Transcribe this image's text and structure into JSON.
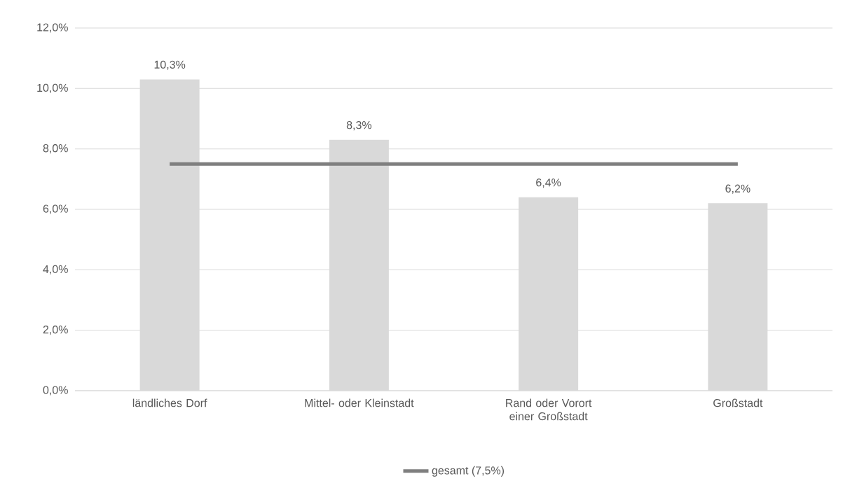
{
  "chart_data": {
    "type": "bar",
    "categories": [
      "ländliches Dorf",
      "Mittel- oder Kleinstadt",
      "Rand oder Vorort einer Großstadt",
      "Großstadt"
    ],
    "series": [
      {
        "color": "#d9d9d9",
        "values": [
          10.3,
          8.3,
          6.4,
          6.2
        ],
        "value_labels": [
          "10,3%",
          "8,3%",
          "6,4%",
          "6,2%"
        ]
      },
      {
        "type": "line",
        "name": "gesamt (7,5%)",
        "color": "#7f7f7f",
        "values": [
          7.5,
          7.5,
          7.5,
          7.5
        ]
      }
    ],
    "ylim": [
      0,
      12
    ],
    "yticks": [
      {
        "value": 0,
        "label": "0,0%"
      },
      {
        "value": 2,
        "label": "2,0%"
      },
      {
        "value": 4,
        "label": "4,0%"
      },
      {
        "value": 6,
        "label": "6,0%"
      },
      {
        "value": 8,
        "label": "8,0%"
      },
      {
        "value": 10,
        "label": "10,0%"
      },
      {
        "value": 12,
        "label": "12,0%"
      }
    ],
    "grid": "y",
    "legend": "bottom"
  }
}
